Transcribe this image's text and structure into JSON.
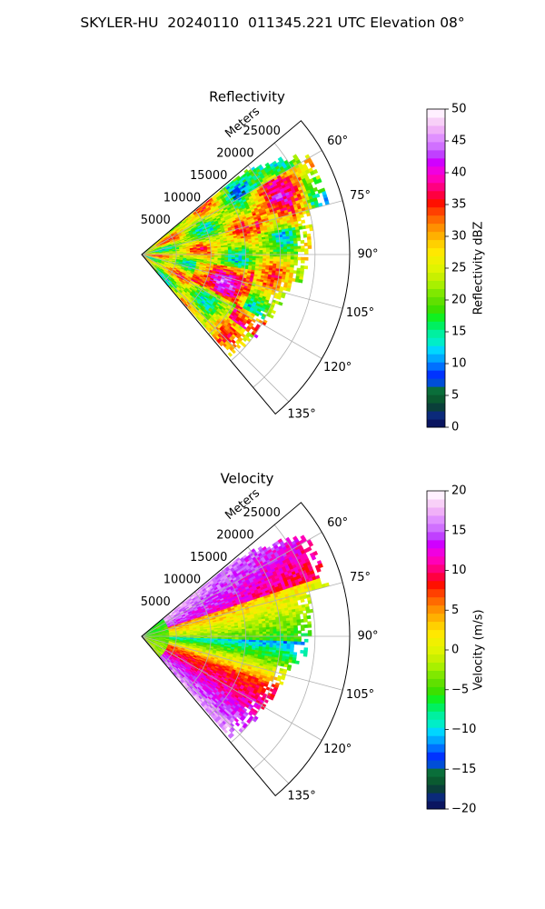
{
  "figure": {
    "title": "SKYLER-HU  20240110  011345.221 UTC Elevation 08°"
  },
  "chart_data": [
    {
      "type": "heatmap",
      "projection": "polar-sector",
      "title": "Reflectivity",
      "range_axis_label": "Meters",
      "range_ticks": [
        5000,
        10000,
        15000,
        20000,
        25000
      ],
      "range_max": 30000,
      "azimuth_ticks": [
        60,
        75,
        90,
        105,
        120,
        135
      ],
      "azimuth_tick_labels": [
        "60°",
        "75°",
        "90°",
        "105°",
        "120°",
        "135°"
      ],
      "azimuth_range": [
        50,
        140
      ],
      "grid": true,
      "colorbar": {
        "label": "Reflectivity dBZ",
        "range": [
          0,
          50
        ],
        "ticks": [
          0,
          5,
          10,
          15,
          20,
          25,
          30,
          35,
          40,
          45,
          50
        ],
        "colors": [
          "#0a1560",
          "#0b2a7a",
          "#0a3f3a",
          "#0a5a30",
          "#0a6e3a",
          "#004ed8",
          "#0033ff",
          "#0070ff",
          "#00a8ff",
          "#00d6ff",
          "#00eec8",
          "#00f0a0",
          "#00f060",
          "#10f020",
          "#3ce000",
          "#60e000",
          "#80e800",
          "#a8f000",
          "#c8f000",
          "#e0f400",
          "#f0f000",
          "#ffe800",
          "#ffd000",
          "#ffb000",
          "#ff9000",
          "#ff6a00",
          "#ff4000",
          "#ff1000",
          "#ff0040",
          "#ff0080",
          "#ff00b8",
          "#f000e0",
          "#d000ff",
          "#c040ff",
          "#d070ff",
          "#e090ff",
          "#f0b0f8",
          "#f8d0f8",
          "#fff0ff"
        ]
      }
    },
    {
      "type": "heatmap",
      "projection": "polar-sector",
      "title": "Velocity",
      "range_axis_label": "Meters",
      "range_ticks": [
        5000,
        10000,
        15000,
        20000,
        25000
      ],
      "range_max": 30000,
      "azimuth_ticks": [
        60,
        75,
        90,
        105,
        120,
        135
      ],
      "azimuth_tick_labels": [
        "60°",
        "75°",
        "90°",
        "105°",
        "120°",
        "135°"
      ],
      "azimuth_range": [
        50,
        140
      ],
      "grid": true,
      "colorbar": {
        "label": "Velocity (m/s)",
        "range": [
          -20,
          20
        ],
        "ticks": [
          -20,
          -15,
          -10,
          -5,
          0,
          5,
          10,
          15,
          20
        ],
        "tick_labels": [
          "−20",
          "−15",
          "−10",
          "−5",
          "0",
          "5",
          "10",
          "15",
          "20"
        ],
        "colors": [
          "#0a1560",
          "#0b2a7a",
          "#0a3f3a",
          "#0a5a30",
          "#0a6e3a",
          "#004ed8",
          "#0033ff",
          "#0070ff",
          "#00a8ff",
          "#00d6ff",
          "#00eec8",
          "#00f0a0",
          "#00f060",
          "#10f020",
          "#3ce000",
          "#60e000",
          "#80e800",
          "#a8f000",
          "#c8f000",
          "#e0f400",
          "#f0f000",
          "#ffe800",
          "#ffd000",
          "#ffb000",
          "#ff9000",
          "#ff6a00",
          "#ff4000",
          "#ff1000",
          "#ff0040",
          "#ff0080",
          "#ff00b8",
          "#f000e0",
          "#d000ff",
          "#c040ff",
          "#d070ff",
          "#e090ff",
          "#f0b0f8",
          "#f8d0f8",
          "#fff0ff"
        ]
      }
    }
  ]
}
